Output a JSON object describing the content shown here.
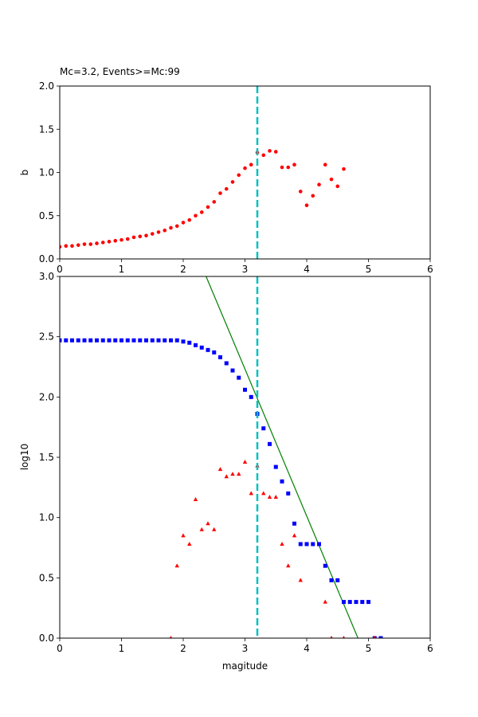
{
  "chart_data": [
    {
      "type": "scatter",
      "title": "Mc=3.2, Events>=Mc:99",
      "xlabel": "",
      "ylabel": "b",
      "xlim": [
        0,
        6
      ],
      "ylim": [
        0,
        2
      ],
      "xticks": [
        "0",
        "1",
        "2",
        "3",
        "4",
        "5",
        "6"
      ],
      "yticks": [
        "0.0",
        "0.5",
        "1.0",
        "1.5",
        "2.0"
      ],
      "grid": false,
      "mc_line": {
        "x": 3.2,
        "color": "#00bfbf",
        "style": "dashed"
      },
      "series": [
        {
          "marker": "circle",
          "color": "#ff0000",
          "x": [
            0.0,
            0.1,
            0.2,
            0.3,
            0.4,
            0.5,
            0.6,
            0.7,
            0.8,
            0.9,
            1.0,
            1.1,
            1.2,
            1.3,
            1.4,
            1.5,
            1.6,
            1.7,
            1.8,
            1.9,
            2.0,
            2.1,
            2.2,
            2.3,
            2.4,
            2.5,
            2.6,
            2.7,
            2.8,
            2.9,
            3.0,
            3.1,
            3.2,
            3.3,
            3.4,
            3.5,
            3.6,
            3.7,
            3.8,
            3.9,
            4.0,
            4.1,
            4.2,
            4.3,
            4.4,
            4.5,
            4.6
          ],
          "y": [
            0.14,
            0.15,
            0.15,
            0.16,
            0.17,
            0.17,
            0.18,
            0.19,
            0.2,
            0.21,
            0.22,
            0.23,
            0.25,
            0.26,
            0.27,
            0.29,
            0.31,
            0.33,
            0.36,
            0.38,
            0.42,
            0.45,
            0.5,
            0.54,
            0.6,
            0.66,
            0.76,
            0.81,
            0.89,
            0.97,
            1.05,
            1.09,
            1.23,
            1.2,
            1.25,
            1.24,
            1.06,
            1.06,
            1.09,
            0.78,
            0.62,
            0.73,
            0.86,
            1.09,
            0.92,
            0.84,
            1.04
          ]
        }
      ]
    },
    {
      "type": "scatter",
      "title": "",
      "xlabel": "magitude",
      "ylabel": "log10",
      "xlim": [
        0,
        6
      ],
      "ylim": [
        0,
        3
      ],
      "xticks": [
        "0",
        "1",
        "2",
        "3",
        "4",
        "5",
        "6"
      ],
      "yticks": [
        "0.0",
        "0.5",
        "1.0",
        "1.5",
        "2.0",
        "2.5",
        "3.0"
      ],
      "grid": false,
      "mc_line": {
        "x": 3.2,
        "color": "#00bfbf",
        "style": "dashed"
      },
      "fit_line": {
        "x": [
          2.37,
          4.83
        ],
        "y": [
          3.0,
          0.0
        ],
        "color": "#008000"
      },
      "series": [
        {
          "marker": "square",
          "color": "#0000ff",
          "x": [
            0.0,
            0.1,
            0.2,
            0.3,
            0.4,
            0.5,
            0.6,
            0.7,
            0.8,
            0.9,
            1.0,
            1.1,
            1.2,
            1.3,
            1.4,
            1.5,
            1.6,
            1.7,
            1.8,
            1.9,
            2.0,
            2.1,
            2.2,
            2.3,
            2.4,
            2.5,
            2.6,
            2.7,
            2.8,
            2.9,
            3.0,
            3.1,
            3.2,
            3.3,
            3.4,
            3.5,
            3.6,
            3.7,
            3.8,
            3.9,
            4.0,
            4.1,
            4.2,
            4.3,
            4.4,
            4.5,
            4.6,
            4.7,
            4.8,
            4.9,
            5.0,
            5.1,
            5.2
          ],
          "y": [
            2.47,
            2.47,
            2.47,
            2.47,
            2.47,
            2.47,
            2.47,
            2.47,
            2.47,
            2.47,
            2.47,
            2.47,
            2.47,
            2.47,
            2.47,
            2.47,
            2.47,
            2.47,
            2.47,
            2.47,
            2.46,
            2.45,
            2.43,
            2.41,
            2.39,
            2.37,
            2.33,
            2.28,
            2.22,
            2.16,
            2.06,
            2.0,
            1.86,
            1.74,
            1.61,
            1.42,
            1.3,
            1.2,
            0.95,
            0.78,
            0.78,
            0.78,
            0.78,
            0.6,
            0.48,
            0.48,
            0.3,
            0.3,
            0.3,
            0.3,
            0.3,
            0.0,
            0.0
          ]
        },
        {
          "marker": "triangle",
          "color": "#ff0000",
          "x": [
            1.8,
            1.9,
            2.0,
            2.1,
            2.2,
            2.3,
            2.4,
            2.5,
            2.6,
            2.7,
            2.8,
            2.9,
            3.0,
            3.1,
            3.2,
            3.3,
            3.4,
            3.5,
            3.6,
            3.7,
            3.8,
            3.9,
            4.3,
            4.4,
            4.6,
            5.1
          ],
          "y": [
            0.0,
            0.6,
            0.85,
            0.78,
            1.15,
            0.9,
            0.95,
            0.9,
            1.4,
            1.34,
            1.36,
            1.36,
            1.46,
            1.2,
            1.43,
            1.2,
            1.17,
            1.17,
            0.78,
            0.6,
            0.85,
            0.48,
            0.3,
            0.0,
            0.0,
            0.0
          ]
        }
      ]
    }
  ]
}
